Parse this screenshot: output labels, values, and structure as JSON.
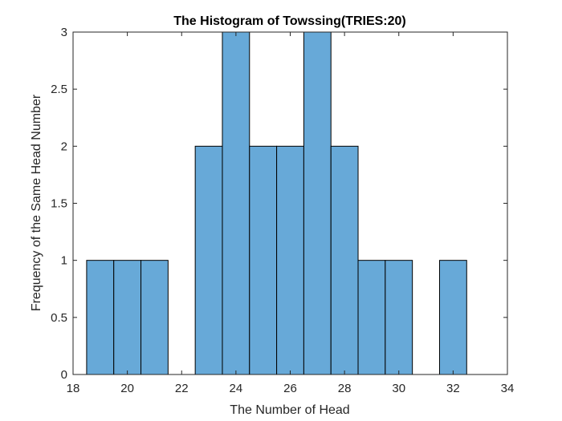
{
  "chart_data": {
    "type": "bar",
    "title": "The Histogram of Towssing(TRIES:20)",
    "xlabel": "The Number of Head",
    "ylabel": "Frequency of the Same Head Number",
    "bin_width": 1,
    "bins": [
      {
        "x": 19,
        "count": 1
      },
      {
        "x": 20,
        "count": 1
      },
      {
        "x": 21,
        "count": 1
      },
      {
        "x": 22,
        "count": 0
      },
      {
        "x": 23,
        "count": 2
      },
      {
        "x": 24,
        "count": 3
      },
      {
        "x": 25,
        "count": 2
      },
      {
        "x": 26,
        "count": 2
      },
      {
        "x": 27,
        "count": 3
      },
      {
        "x": 28,
        "count": 2
      },
      {
        "x": 29,
        "count": 1
      },
      {
        "x": 30,
        "count": 1
      },
      {
        "x": 31,
        "count": 0
      },
      {
        "x": 32,
        "count": 1
      }
    ],
    "xlim": [
      18,
      34
    ],
    "ylim": [
      0,
      3
    ],
    "xticks": [
      "18",
      "20",
      "22",
      "24",
      "26",
      "28",
      "30",
      "32",
      "34"
    ],
    "yticks": [
      "0",
      "0.5",
      "1",
      "1.5",
      "2",
      "2.5",
      "3"
    ],
    "bar_color": "#67a9d8",
    "grid": false
  }
}
